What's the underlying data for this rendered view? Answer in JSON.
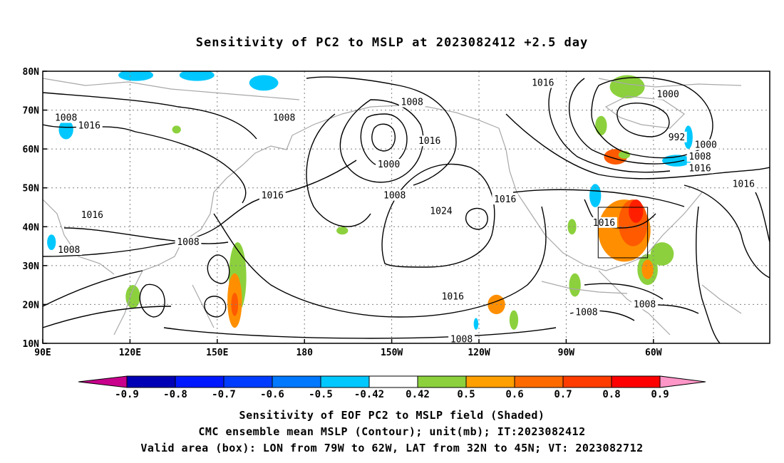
{
  "title": "Sensitivity of PC2 to MSLP at 2023082412 +2.5 day",
  "map": {
    "lat_labels": [
      "80N",
      "70N",
      "60N",
      "50N",
      "40N",
      "30N",
      "20N",
      "10N"
    ],
    "lon_labels": [
      "90E",
      "120E",
      "150E",
      "180",
      "150W",
      "120W",
      "90W",
      "60W"
    ],
    "valid_box": {
      "lon_min": -79,
      "lon_max": -62,
      "lat_min": 32,
      "lat_max": 45
    },
    "contour_labels": [
      {
        "text": "1016",
        "lon": 262,
        "lat": 77
      },
      {
        "text": "1000",
        "lon": 305,
        "lat": 74
      },
      {
        "text": "1008",
        "lon": 98,
        "lat": 68
      },
      {
        "text": "1008",
        "lon": 173,
        "lat": 68
      },
      {
        "text": "1008",
        "lon": 217,
        "lat": 72
      },
      {
        "text": "1016",
        "lon": 106,
        "lat": 66
      },
      {
        "text": "992",
        "lon": 308,
        "lat": 63
      },
      {
        "text": "1000",
        "lon": 318,
        "lat": 61
      },
      {
        "text": "1016",
        "lon": 223,
        "lat": 62
      },
      {
        "text": "1008",
        "lon": 316,
        "lat": 58
      },
      {
        "text": "1016",
        "lon": 316,
        "lat": 55
      },
      {
        "text": "1000",
        "lon": 209,
        "lat": 56
      },
      {
        "text": "1008",
        "lon": 211,
        "lat": 48
      },
      {
        "text": "1016",
        "lon": 331,
        "lat": 51
      },
      {
        "text": "1016",
        "lon": 169,
        "lat": 48
      },
      {
        "text": "1016",
        "lon": 249,
        "lat": 47
      },
      {
        "text": "1024",
        "lon": 227,
        "lat": 44
      },
      {
        "text": "1016",
        "lon": 107,
        "lat": 43
      },
      {
        "text": "1016",
        "lon": 283,
        "lat": 41
      },
      {
        "text": "1008",
        "lon": 140,
        "lat": 36
      },
      {
        "text": "1008",
        "lon": 99,
        "lat": 34
      },
      {
        "text": "1016",
        "lon": 231,
        "lat": 22
      },
      {
        "text": "1008",
        "lon": 297,
        "lat": 20
      },
      {
        "text": "1008",
        "lon": 277,
        "lat": 18
      },
      {
        "text": "1008",
        "lon": 234,
        "lat": 11
      }
    ],
    "shading": [
      {
        "lon": 246,
        "lat": 20,
        "rx": 3,
        "ry": 2.5,
        "color": "#ff8f00"
      },
      {
        "lon": 157,
        "lat": 27,
        "rx": 3,
        "ry": 9,
        "color": "#8cd13d"
      },
      {
        "lon": 156,
        "lat": 21,
        "rx": 2.5,
        "ry": 7,
        "color": "#ff8f00"
      },
      {
        "lon": 156,
        "lat": 20,
        "rx": 1.2,
        "ry": 3,
        "color": "#ff5a00"
      },
      {
        "lon": 303,
        "lat": 33,
        "rx": 4,
        "ry": 3,
        "color": "#8cd13d"
      },
      {
        "lon": 290,
        "lat": 39,
        "rx": 9,
        "ry": 8,
        "color": "#ff8f00"
      },
      {
        "lon": 293,
        "lat": 41,
        "rx": 5,
        "ry": 6,
        "color": "#ff5a00"
      },
      {
        "lon": 294,
        "lat": 44,
        "rx": 2.5,
        "ry": 3,
        "color": "#ff1f00"
      },
      {
        "lon": 298,
        "lat": 29,
        "rx": 3.5,
        "ry": 4,
        "color": "#8cd13d"
      },
      {
        "lon": 298,
        "lat": 29,
        "rx": 2,
        "ry": 2.5,
        "color": "#ff8f00"
      },
      {
        "lon": 287,
        "lat": 58,
        "rx": 4,
        "ry": 2,
        "color": "#ff5a00"
      },
      {
        "lon": 290,
        "lat": 58.5,
        "rx": 2,
        "ry": 1,
        "color": "#8cd13d"
      },
      {
        "lon": 280,
        "lat": 48,
        "rx": 2,
        "ry": 3,
        "color": "#00c8ff"
      },
      {
        "lon": 308,
        "lat": 57,
        "rx": 5,
        "ry": 1.5,
        "color": "#00c8ff"
      },
      {
        "lon": 312,
        "lat": 63,
        "rx": 1.5,
        "ry": 3,
        "color": "#00c8ff"
      },
      {
        "lon": 98,
        "lat": 65,
        "rx": 2.5,
        "ry": 2.5,
        "color": "#00c8ff"
      },
      {
        "lon": 122,
        "lat": 79,
        "rx": 6,
        "ry": 1.5,
        "color": "#00c8ff"
      },
      {
        "lon": 143,
        "lat": 79,
        "rx": 6,
        "ry": 1.5,
        "color": "#00c8ff"
      },
      {
        "lon": 93,
        "lat": 36,
        "rx": 1.5,
        "ry": 2,
        "color": "#00c8ff"
      },
      {
        "lon": 239,
        "lat": 15,
        "rx": 0.8,
        "ry": 1.5,
        "color": "#00c8ff"
      },
      {
        "lon": 166,
        "lat": 77,
        "rx": 5,
        "ry": 2,
        "color": "#00c8ff"
      },
      {
        "lon": 121,
        "lat": 22,
        "rx": 2.5,
        "ry": 3,
        "color": "#8cd13d"
      },
      {
        "lon": 193,
        "lat": 39,
        "rx": 2,
        "ry": 1,
        "color": "#8cd13d"
      },
      {
        "lon": 252,
        "lat": 16,
        "rx": 1.5,
        "ry": 2.5,
        "color": "#8cd13d"
      },
      {
        "lon": 273,
        "lat": 25,
        "rx": 2,
        "ry": 3,
        "color": "#8cd13d"
      },
      {
        "lon": 291,
        "lat": 76,
        "rx": 6,
        "ry": 3,
        "color": "#8cd13d"
      },
      {
        "lon": 282,
        "lat": 66,
        "rx": 2,
        "ry": 2.5,
        "color": "#8cd13d"
      },
      {
        "lon": 272,
        "lat": 40,
        "rx": 1.5,
        "ry": 2,
        "color": "#8cd13d"
      },
      {
        "lon": 136,
        "lat": 65,
        "rx": 1.5,
        "ry": 1,
        "color": "#8cd13d"
      }
    ]
  },
  "colorbar": {
    "labels": [
      "-0.9",
      "-0.8",
      "-0.7",
      "-0.6",
      "-0.5",
      "-0.42",
      "0.42",
      "0.5",
      "0.6",
      "0.7",
      "0.8",
      "0.9"
    ],
    "colors": [
      "#0000b4",
      "#0018ff",
      "#003cff",
      "#0078ff",
      "#00c8ff",
      "#ffffff",
      "#8cd13d",
      "#ff9f00",
      "#ff6a00",
      "#ff3c00",
      "#ff0000"
    ],
    "left_end_color": "#c8008c",
    "right_end_color": "#ff96c8"
  },
  "captions": {
    "line1": "Sensitivity of EOF PC2 to MSLP field (Shaded)",
    "line2": "CMC ensemble mean MSLP (Contour); unit(mb); IT:2023082412",
    "line3": "Valid area (box): LON from 79W to 62W, LAT from 32N to 45N; VT: 2023082712"
  }
}
